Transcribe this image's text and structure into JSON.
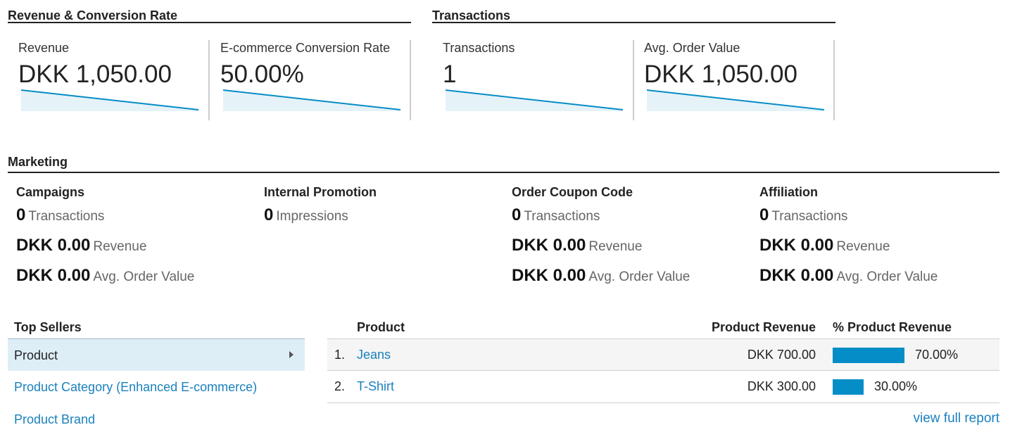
{
  "sections": {
    "revenue_title": "Revenue & Conversion Rate",
    "transactions_title": "Transactions",
    "marketing_title": "Marketing"
  },
  "kpis": [
    {
      "label": "Revenue",
      "value": "DKK 1,050.00"
    },
    {
      "label": "E-commerce Conversion Rate",
      "value": "50.00%"
    },
    {
      "label": "Transactions",
      "value": "1"
    },
    {
      "label": "Avg. Order Value",
      "value": "DKK 1,050.00"
    }
  ],
  "marketing": [
    {
      "title": "Campaigns",
      "rows": [
        {
          "num": "0",
          "label": "Transactions"
        },
        {
          "num": "DKK 0.00",
          "label": "Revenue"
        },
        {
          "num": "DKK 0.00",
          "label": "Avg. Order Value"
        }
      ]
    },
    {
      "title": "Internal Promotion",
      "rows": [
        {
          "num": "0",
          "label": "Impressions"
        }
      ]
    },
    {
      "title": "Order Coupon Code",
      "rows": [
        {
          "num": "0",
          "label": "Transactions"
        },
        {
          "num": "DKK 0.00",
          "label": "Revenue"
        },
        {
          "num": "DKK 0.00",
          "label": "Avg. Order Value"
        }
      ]
    },
    {
      "title": "Affiliation",
      "rows": [
        {
          "num": "0",
          "label": "Transactions"
        },
        {
          "num": "DKK 0.00",
          "label": "Revenue"
        },
        {
          "num": "DKK 0.00",
          "label": "Avg. Order Value"
        }
      ]
    }
  ],
  "top_sellers": {
    "title": "Top Sellers",
    "items": [
      "Product",
      "Product Category (Enhanced E-commerce)",
      "Product Brand"
    ],
    "selected_index": 0
  },
  "table": {
    "headers": [
      "Product",
      "Product Revenue",
      "% Product Revenue"
    ],
    "rows": [
      {
        "index": "1.",
        "product": "Jeans",
        "revenue": "DKK 700.00",
        "percent": "70.00%",
        "share": 0.7
      },
      {
        "index": "2.",
        "product": "T-Shirt",
        "revenue": "DKK 300.00",
        "percent": "30.00%",
        "share": 0.3
      }
    ],
    "view_full_report": "view full report"
  },
  "colors": {
    "accent": "#058dc7",
    "link": "#1a81be",
    "sparkline_line": "#058dc7",
    "sparkline_fill": "#e5f2f8",
    "selected_bg": "#deeef7"
  }
}
